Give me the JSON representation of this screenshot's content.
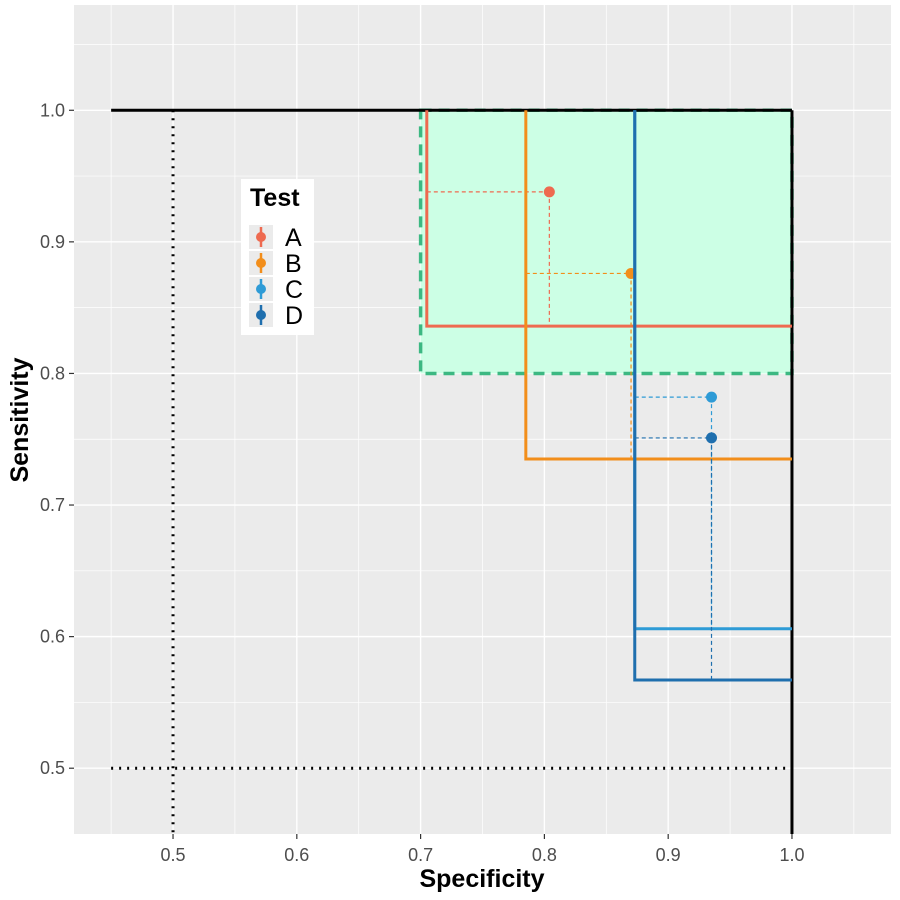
{
  "chart_data": {
    "type": "scatter",
    "xlabel": "Specificity",
    "ylabel": "Sensitivity",
    "xlim": [
      0.42,
      1.08
    ],
    "ylim": [
      0.45,
      1.08
    ],
    "x_ticks": [
      0.5,
      0.6,
      0.7,
      0.8,
      0.9,
      1.0
    ],
    "x_tick_labels": [
      "0.5",
      "0.6",
      "0.7",
      "0.8",
      "0.9",
      "1.0"
    ],
    "y_ticks": [
      0.5,
      0.6,
      0.7,
      0.8,
      0.9,
      1.0
    ],
    "y_tick_labels": [
      "0.5",
      "0.6",
      "0.7",
      "0.8",
      "0.9",
      "1.0"
    ],
    "grid": true,
    "panel_background": "#ebebeb",
    "legend": {
      "title": "Test",
      "position": "inside-top-left",
      "entries": [
        "A",
        "B",
        "C",
        "D"
      ]
    },
    "series": [
      {
        "name": "A",
        "color": "#EE6A50",
        "specificity": 0.804,
        "sensitivity": 0.938,
        "spec_lower": 0.705,
        "sens_lower": 0.836
      },
      {
        "name": "B",
        "color": "#F28E1B",
        "specificity": 0.87,
        "sensitivity": 0.876,
        "spec_lower": 0.785,
        "sens_lower": 0.735
      },
      {
        "name": "C",
        "color": "#2E9BD6",
        "specificity": 0.935,
        "sensitivity": 0.782,
        "spec_lower": 0.873,
        "sens_lower": 0.606
      },
      {
        "name": "D",
        "color": "#1F6FAE",
        "specificity": 0.935,
        "sensitivity": 0.751,
        "spec_lower": 0.873,
        "sens_lower": 0.567
      }
    ],
    "target_region": {
      "spec_min": 0.7,
      "spec_max": 1.0,
      "sens_min": 0.8,
      "sens_max": 1.0,
      "fill": "#CCFFE5",
      "border": "#3CB882"
    },
    "reference_lines": {
      "specificity": 0.5,
      "sensitivity": 0.5
    },
    "boundary": {
      "top_sens": 1.0,
      "top_spec_from": 0.45,
      "right_spec": 1.0,
      "right_sens_from": 0.45
    }
  }
}
